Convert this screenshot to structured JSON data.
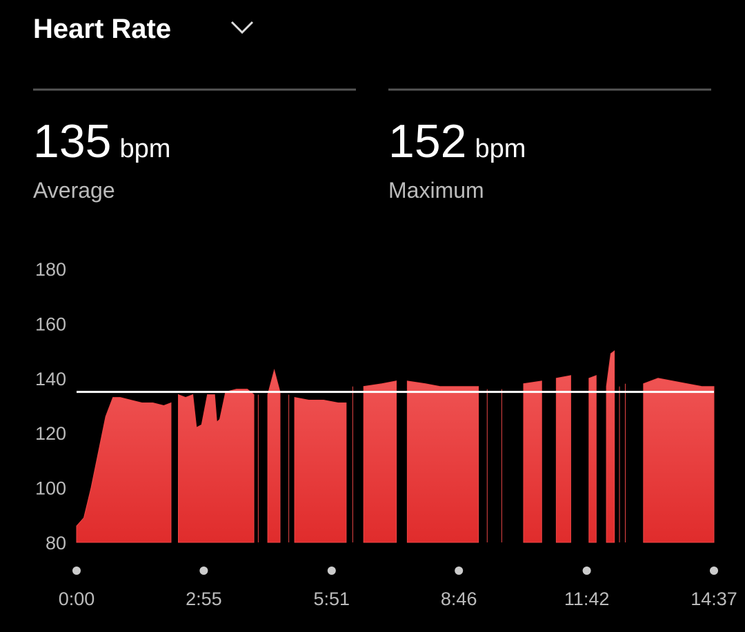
{
  "header": {
    "title": "Heart Rate"
  },
  "stats": [
    {
      "value": 135,
      "unit": "bpm",
      "label": "Average"
    },
    {
      "value": 152,
      "unit": "bpm",
      "label": "Maximum"
    }
  ],
  "chart_data": {
    "type": "area",
    "x": [
      0,
      10,
      20,
      30,
      40,
      50,
      60,
      75,
      90,
      105,
      120,
      130,
      135,
      140,
      150,
      160,
      165,
      172,
      180,
      190,
      193,
      197,
      205,
      220,
      235,
      244,
      245,
      250,
      258,
      263,
      272,
      280,
      287,
      292,
      293,
      300,
      320,
      340,
      360,
      371,
      372,
      380,
      387,
      395,
      420,
      440,
      446,
      455,
      480,
      500,
      540,
      553,
      555,
      565,
      573,
      585,
      604,
      615,
      640,
      647,
      660,
      680,
      696,
      705,
      715,
      726,
      729,
      735,
      740,
      745,
      747,
      749,
      755,
      767,
      780,
      800,
      820,
      840,
      860,
      877
    ],
    "series": [
      {
        "color": "#ec4646",
        "values": [
          86,
          89,
          100,
          113,
          126,
          133,
          133,
          132,
          131,
          131,
          130,
          131,
          null,
          134,
          133,
          134,
          122,
          123,
          134,
          134,
          124,
          125,
          135,
          136,
          136,
          134,
          null,
          134,
          null,
          134,
          143,
          135,
          null,
          134,
          null,
          133,
          132,
          132,
          131,
          131,
          null,
          137,
          null,
          137,
          138,
          139,
          null,
          139,
          138,
          137,
          137,
          137,
          null,
          136,
          null,
          136,
          null,
          138,
          139,
          null,
          140,
          141,
          null,
          140,
          141,
          null,
          137,
          149,
          150,
          null,
          137,
          null,
          138,
          null,
          138,
          140,
          139,
          138,
          137,
          137
        ]
      }
    ],
    "xlim": [
      0,
      877
    ],
    "xticks": [
      {
        "value": 0,
        "label": "0:00"
      },
      {
        "value": 175,
        "label": "2:55"
      },
      {
        "value": 351,
        "label": "5:51"
      },
      {
        "value": 526,
        "label": "8:46"
      },
      {
        "value": 702,
        "label": "11:42"
      },
      {
        "value": 877,
        "label": "14:37"
      }
    ],
    "ylim": [
      80,
      180
    ],
    "yticks": [
      80,
      100,
      120,
      140,
      160,
      180
    ],
    "grid": false
  }
}
